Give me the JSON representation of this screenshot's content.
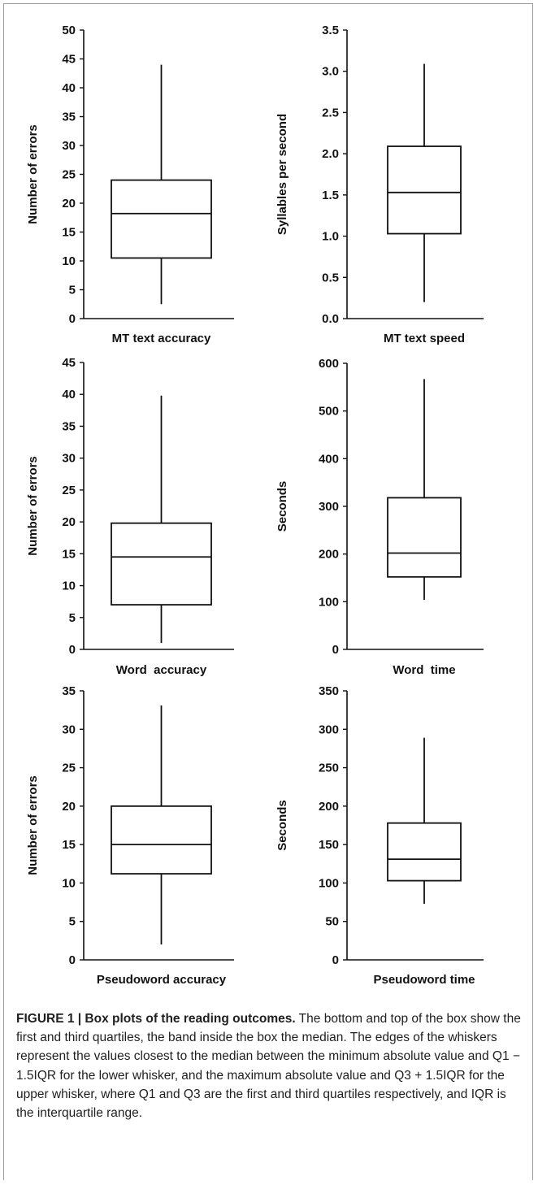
{
  "chart_data": [
    {
      "type": "box",
      "xlabel": "MT text accuracy",
      "ylabel": "Number of errors",
      "ylim": [
        0,
        50
      ],
      "yticks": [
        0,
        5,
        10,
        15,
        20,
        25,
        30,
        35,
        40,
        45,
        50
      ],
      "ytick_labels": [
        "0",
        "5",
        "10",
        "15",
        "20",
        "25",
        "30",
        "35",
        "40",
        "45",
        "50"
      ],
      "box": {
        "whisker_low": 2.5,
        "q1": 10.5,
        "median": 18.2,
        "q3": 24.0,
        "whisker_high": 44.0
      }
    },
    {
      "type": "box",
      "xlabel": "MT text speed",
      "ylabel": "Syllables per second",
      "ylim": [
        0,
        3.5
      ],
      "yticks": [
        0,
        0.5,
        1.0,
        1.5,
        2.0,
        2.5,
        3.0,
        3.5
      ],
      "ytick_labels": [
        "0.0",
        "0.5",
        "1.0",
        "1.5",
        "2.0",
        "2.5",
        "3.0",
        "3.5"
      ],
      "box": {
        "whisker_low": 0.2,
        "q1": 1.03,
        "median": 1.53,
        "q3": 2.09,
        "whisker_high": 3.09
      }
    },
    {
      "type": "box",
      "xlabel": "Word  accuracy",
      "ylabel": "Number of errors",
      "ylim": [
        0,
        45
      ],
      "yticks": [
        0,
        5,
        10,
        15,
        20,
        25,
        30,
        35,
        40,
        45
      ],
      "ytick_labels": [
        "0",
        "5",
        "10",
        "15",
        "20",
        "25",
        "30",
        "35",
        "40",
        "45"
      ],
      "box": {
        "whisker_low": 1.0,
        "q1": 7.0,
        "median": 14.5,
        "q3": 19.8,
        "whisker_high": 39.8
      }
    },
    {
      "type": "box",
      "xlabel": "Word  time",
      "ylabel": "Seconds",
      "ylim": [
        0,
        600
      ],
      "yticks": [
        0,
        100,
        200,
        300,
        400,
        500,
        600
      ],
      "ytick_labels": [
        "0",
        "100",
        "200",
        "300",
        "400",
        "500",
        "600"
      ],
      "box": {
        "whisker_low": 104,
        "q1": 152,
        "median": 202,
        "q3": 318,
        "whisker_high": 567
      }
    },
    {
      "type": "box",
      "xlabel": "Pseudoword accuracy",
      "ylabel": "Number of errors",
      "ylim": [
        0,
        35
      ],
      "yticks": [
        0,
        5,
        10,
        15,
        20,
        25,
        30,
        35
      ],
      "ytick_labels": [
        "0",
        "5",
        "10",
        "15",
        "20",
        "25",
        "30",
        "35"
      ],
      "box": {
        "whisker_low": 2.0,
        "q1": 11.2,
        "median": 15.0,
        "q3": 20.0,
        "whisker_high": 33.1
      }
    },
    {
      "type": "box",
      "xlabel": "Pseudoword time",
      "ylabel": "Seconds",
      "ylim": [
        0,
        350
      ],
      "yticks": [
        0,
        50,
        100,
        150,
        200,
        250,
        300,
        350
      ],
      "ytick_labels": [
        "0",
        "50",
        "100",
        "150",
        "200",
        "250",
        "300",
        "350"
      ],
      "box": {
        "whisker_low": 73,
        "q1": 103,
        "median": 131,
        "q3": 178,
        "whisker_high": 289
      }
    }
  ],
  "caption": {
    "title": "FIGURE 1 | Box plots of the reading outcomes.",
    "text": " The bottom and top of the box show the first and third quartiles, the band inside the box the median. The edges of the whiskers represent the values closest to the median between the minimum absolute value and Q1 − 1.5IQR for the lower whisker, and the maximum absolute value and Q3 + 1.5IQR for the upper whisker, where Q1 and Q3 are the first and third quartiles respectively, and IQR is the interquartile range."
  }
}
